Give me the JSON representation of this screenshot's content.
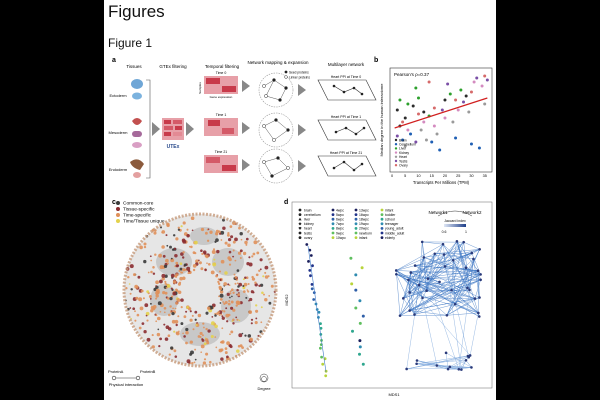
{
  "page": {
    "title": "Figures",
    "subtitle": "Figure 1"
  },
  "panel_a": {
    "letter": "a",
    "steps": [
      "Tissues",
      "GTEx filtering",
      "Temporal filtering",
      "Network mapping & expansion",
      "Multilayer network"
    ],
    "germ_layers": [
      "Ectoderm",
      "Mesoderm",
      "Endoderm"
    ],
    "time_labels": [
      "Time 0",
      "Time 1",
      "Time 21"
    ],
    "gene_expression_label": "Gene expression",
    "samples_label": "Samples",
    "gtex_label": "UTEx",
    "legend_seed": "Seed proteins",
    "legend_linker": "Linker proteins",
    "ppi_labels": [
      "Heart PPI at Time 0",
      "Heart PPI at Time 1",
      "Heart PPI at Time 21"
    ]
  },
  "panel_b": {
    "letter": "b",
    "annotation": "Pearson's ρ=0.37",
    "colors": {
      "trend": "#d11f1f"
    }
  },
  "chart_data": {
    "type": "scatter",
    "xlabel": "Transcripts Per Millions (TPM)",
    "ylabel": "Median degree in the human interactome",
    "xticks": [
      0,
      5,
      10,
      15,
      20,
      25,
      30,
      35
    ],
    "xlim": [
      0,
      37
    ],
    "ylim": [
      0,
      100
    ],
    "legend_placement": "bottom-left",
    "series": [
      {
        "name": "Brain",
        "color": "#2b2b2b",
        "points": [
          [
            2,
            60
          ],
          [
            5,
            52
          ],
          [
            8,
            64
          ],
          [
            12,
            58
          ],
          [
            20,
            70
          ],
          [
            28,
            74
          ],
          [
            3,
            44
          ]
        ]
      },
      {
        "name": "Cerebellum",
        "color": "#1f5fb4",
        "points": [
          [
            4,
            30
          ],
          [
            7,
            36
          ],
          [
            15,
            28
          ],
          [
            24,
            32
          ],
          [
            30,
            26
          ],
          [
            33,
            22
          ],
          [
            18,
            20
          ]
        ]
      },
      {
        "name": "Liver",
        "color": "#2ca02c",
        "points": [
          [
            3,
            70
          ],
          [
            6,
            66
          ],
          [
            10,
            72
          ],
          [
            14,
            54
          ],
          [
            22,
            76
          ],
          [
            26,
            80
          ],
          [
            9,
            82
          ]
        ]
      },
      {
        "name": "Kidney",
        "color": "#d48bc0",
        "points": [
          [
            6,
            40
          ],
          [
            12,
            48
          ],
          [
            16,
            44
          ],
          [
            25,
            60
          ],
          [
            31,
            88
          ],
          [
            34,
            84
          ],
          [
            20,
            52
          ]
        ]
      },
      {
        "name": "Heart",
        "color": "#9a9a9a",
        "points": [
          [
            5,
            24
          ],
          [
            11,
            40
          ],
          [
            17,
            36
          ],
          [
            23,
            48
          ],
          [
            29,
            58
          ],
          [
            35,
            66
          ],
          [
            13,
            30
          ]
        ]
      },
      {
        "name": "Testis",
        "color": "#7b4fa6",
        "points": [
          [
            2,
            34
          ],
          [
            9,
            28
          ],
          [
            19,
            60
          ],
          [
            27,
            68
          ],
          [
            32,
            92
          ],
          [
            36,
            90
          ],
          [
            21,
            86
          ]
        ]
      },
      {
        "name": "Ovary",
        "color": "#d66a6a",
        "points": [
          [
            4,
            48
          ],
          [
            10,
            56
          ],
          [
            16,
            62
          ],
          [
            24,
            70
          ],
          [
            30,
            78
          ],
          [
            35,
            94
          ],
          [
            14,
            88
          ]
        ]
      }
    ],
    "trend": {
      "x": [
        1,
        36
      ],
      "y": [
        42,
        72
      ]
    }
  },
  "panel_c": {
    "letter": "c",
    "legend": [
      {
        "label": "Common-core",
        "color": "#3a3a3a"
      },
      {
        "label": "Tissue-specific",
        "color": "#8b2c30"
      },
      {
        "label": "Time-specific",
        "color": "#e0905a"
      },
      {
        "label": "Time/Tissue unique",
        "color": "#e3d24c"
      }
    ],
    "protein_a": "ProteinA",
    "protein_b": "ProteinB",
    "interaction_label": "Physical interaction",
    "degree_label": "Degree"
  },
  "panel_d": {
    "letter": "d",
    "legend_markers": [
      {
        "label": "brain",
        "icon": "circle-icon"
      },
      {
        "label": "cerebellum",
        "icon": "circle-icon"
      },
      {
        "label": "liver",
        "icon": "triangle-icon"
      },
      {
        "label": "kidney",
        "icon": "diamond-icon"
      },
      {
        "label": "heart",
        "icon": "heart-icon"
      },
      {
        "label": "testis",
        "icon": "circle-icon"
      },
      {
        "label": "ovary",
        "icon": "circle-icon"
      }
    ],
    "legend_times": [
      "4wpc",
      "5wpc",
      "6wpc",
      "7wpc",
      "8wpc",
      "9wpc",
      "10wpc"
    ],
    "legend_times2": [
      "13wpc",
      "16wpc",
      "18wpc",
      "19wpc",
      "20wpc",
      "newborn",
      "infant"
    ],
    "legend_stages": [
      "infant",
      "toddler",
      "school",
      "teenager",
      "young_adult",
      "middle_adult",
      "elderly"
    ],
    "network1": "Network1",
    "network2": "Network2",
    "jaccard_label": "Jaccard index",
    "jaccard_ticks": [
      "0.6",
      "1"
    ],
    "xlabel": "MDS1",
    "ylabel": "MDS2"
  }
}
